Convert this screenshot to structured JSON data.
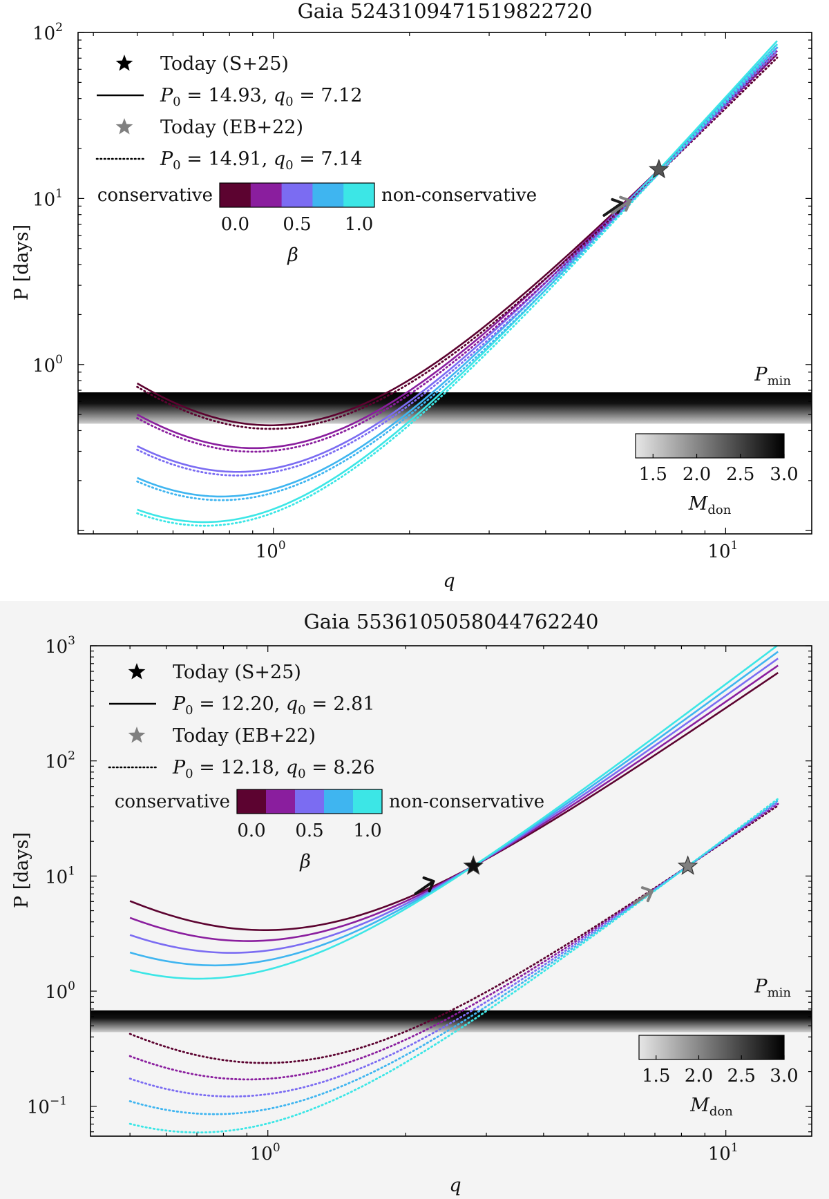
{
  "chart_data": [
    {
      "type": "line",
      "title": "Gaia 5243109471519822720",
      "xlabel": "q",
      "ylabel": "P [days]",
      "xscale": "log",
      "yscale": "log",
      "xlim": [
        0.37,
        15.5
      ],
      "ylim": [
        0.0955,
        100
      ],
      "xticks": [
        {
          "value": 1,
          "base": "10",
          "exp": "0"
        },
        {
          "value": 10,
          "base": "10",
          "exp": "1"
        }
      ],
      "yticks": [
        {
          "value": 1,
          "base": "10",
          "exp": "0"
        },
        {
          "value": 10,
          "base": "10",
          "exp": "1"
        },
        {
          "value": 100,
          "base": "10",
          "exp": "2"
        }
      ],
      "legend": {
        "today_s25": "Today (S+25)",
        "solid_p": "P",
        "solid_sub": "0",
        "solid_text": " = 14.93, ",
        "solid_q": "q",
        "solid_qsub": "0",
        "solid_qval": " = 7.12",
        "today_eb22": "Today (EB+22)",
        "dot_p": "P",
        "dot_sub": "0",
        "dot_text": " = 14.91, ",
        "dot_q": "q",
        "dot_qsub": "0",
        "dot_qval": " = 7.14"
      },
      "beta_colorbar": {
        "left_label": "conservative",
        "right_label": "non-conservative",
        "ticks": [
          "0.0",
          "0.5",
          "1.0"
        ],
        "label": "β"
      },
      "pmin_label": "P",
      "pmin_sub": "min",
      "pmin_band": [
        0.44,
        0.68
      ],
      "mdon_colorbar": {
        "ticks": [
          "1.5",
          "2.0",
          "2.5",
          "3.0"
        ],
        "label": "M",
        "label_sub": "don",
        "range": [
          1.3,
          3.0
        ]
      },
      "colors": [
        "#5c0330",
        "#8a1e9e",
        "#7b6cf2",
        "#3fb5f0",
        "#3ce6e6"
      ],
      "betas": [
        0.0,
        0.25,
        0.5,
        0.75,
        1.0
      ],
      "solid": {
        "q_range": [
          0.5,
          13.0
        ],
        "anchor": {
          "q": 7.12,
          "P": 14.93
        }
      },
      "dotted": {
        "q_range": [
          0.5,
          13.0
        ],
        "anchor": {
          "q": 7.14,
          "P": 14.91
        },
        "offset": 0.96
      },
      "stars": [
        {
          "q": 7.12,
          "P": 14.93,
          "color": "#555555"
        }
      ],
      "arrows": [
        {
          "q": 5.9,
          "P": 9.4,
          "color": "#1a1a1a"
        },
        {
          "q": 6.15,
          "P": 9.7,
          "color": "#808080"
        }
      ]
    },
    {
      "type": "line",
      "title": "Gaia 5536105058044762240",
      "xlabel": "q",
      "ylabel": "P [days]",
      "xscale": "log",
      "yscale": "log",
      "xlim": [
        0.41,
        15.4
      ],
      "ylim": [
        0.055,
        1000
      ],
      "xticks": [
        {
          "value": 1,
          "base": "10",
          "exp": "0"
        },
        {
          "value": 10,
          "base": "10",
          "exp": "1"
        }
      ],
      "yticks": [
        {
          "value": 0.1,
          "base": "10",
          "exp": "−1"
        },
        {
          "value": 1,
          "base": "10",
          "exp": "0"
        },
        {
          "value": 10,
          "base": "10",
          "exp": "1"
        },
        {
          "value": 100,
          "base": "10",
          "exp": "2"
        },
        {
          "value": 1000,
          "base": "10",
          "exp": "3"
        }
      ],
      "legend": {
        "today_s25": "Today (S+25)",
        "solid_p": "P",
        "solid_sub": "0",
        "solid_text": " = 12.20, ",
        "solid_q": "q",
        "solid_qsub": "0",
        "solid_qval": " = 2.81",
        "today_eb22": "Today (EB+22)",
        "dot_p": "P",
        "dot_sub": "0",
        "dot_text": " = 12.18, ",
        "dot_q": "q",
        "dot_qsub": "0",
        "dot_qval": " = 8.26"
      },
      "beta_colorbar": {
        "left_label": "conservative",
        "right_label": "non-conservative",
        "ticks": [
          "0.0",
          "0.5",
          "1.0"
        ],
        "label": "β"
      },
      "pmin_label": "P",
      "pmin_sub": "min",
      "pmin_band": [
        0.44,
        0.68
      ],
      "mdon_colorbar": {
        "ticks": [
          "1.5",
          "2.0",
          "2.5",
          "3.0"
        ],
        "label": "M",
        "label_sub": "don",
        "range": [
          1.3,
          3.0
        ]
      },
      "colors": [
        "#5c0330",
        "#8a1e9e",
        "#7b6cf2",
        "#3fb5f0",
        "#3ce6e6"
      ],
      "betas": [
        0.0,
        0.25,
        0.5,
        0.75,
        1.0
      ],
      "solid": {
        "q_range": [
          0.5,
          13.0
        ],
        "anchor": {
          "q": 2.81,
          "P": 12.2
        }
      },
      "dotted": {
        "q_range": [
          0.5,
          13.0
        ],
        "anchor": {
          "q": 8.26,
          "P": 12.18
        },
        "offset": 1.0
      },
      "stars": [
        {
          "q": 2.81,
          "P": 12.2,
          "color": "#111111"
        },
        {
          "q": 8.26,
          "P": 12.18,
          "color": "#808080"
        }
      ],
      "arrows": [
        {
          "q": 2.3,
          "P": 9.0,
          "color": "#111111"
        },
        {
          "q": 6.9,
          "P": 7.4,
          "color": "#808080"
        }
      ]
    }
  ]
}
